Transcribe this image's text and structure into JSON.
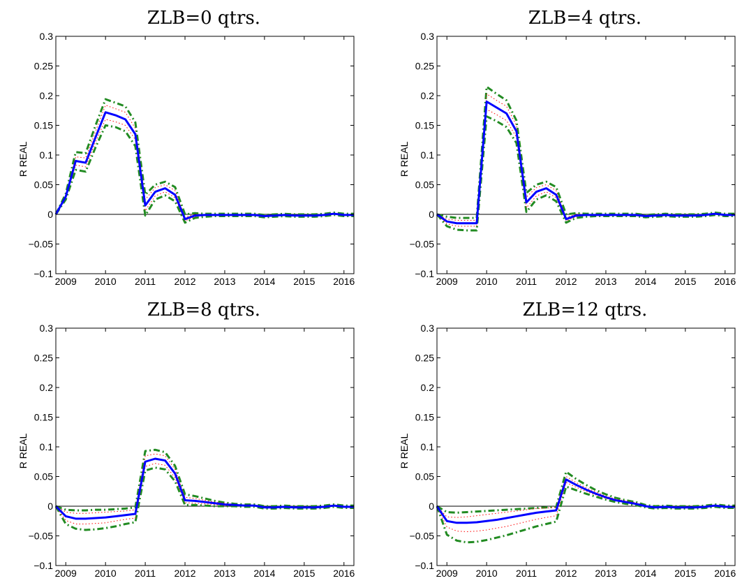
{
  "figure": {
    "colors": {
      "median": "#0000ff",
      "inner_band": "#ff0000",
      "outer_band": "#228b22",
      "zero_line": "#000000"
    }
  },
  "chart_data": [
    {
      "type": "line",
      "title": "ZLB=0 qtrs.",
      "ylabel": "R REAL",
      "xlim": [
        2008.75,
        2016.25
      ],
      "ylim": [
        -0.1,
        0.3
      ],
      "xticks": [
        2009,
        2010,
        2011,
        2012,
        2013,
        2014,
        2015,
        2016
      ],
      "xtick_labels": [
        "2009",
        "2010",
        "2011",
        "2012",
        "2013",
        "2014",
        "2015",
        "2016"
      ],
      "yticks": [
        -0.1,
        -0.05,
        0,
        0.05,
        0.1,
        0.15,
        0.2,
        0.25,
        0.3
      ],
      "ytick_labels": [
        "−0.1",
        "−0.05",
        "0",
        "0.05",
        "0.1",
        "0.15",
        "0.2",
        "0.25",
        "0.3"
      ],
      "x": [
        2008.75,
        2009,
        2009.25,
        2009.5,
        2009.75,
        2010,
        2010.25,
        2010.5,
        2010.75,
        2011,
        2011.25,
        2011.5,
        2011.75,
        2012,
        2012.25,
        2012.5,
        2012.75,
        2013,
        2013.25,
        2013.5,
        2013.75,
        2014,
        2014.25,
        2014.5,
        2014.75,
        2015,
        2015.25,
        2015.5,
        2015.75,
        2016,
        2016.25
      ],
      "series": [
        {
          "role": "median",
          "values": [
            0,
            0.03,
            0.09,
            0.087,
            0.13,
            0.172,
            0.167,
            0.16,
            0.135,
            0.015,
            0.038,
            0.044,
            0.033,
            -0.008,
            -0.002,
            -0.001,
            -0.001,
            -0.001,
            -0.001,
            -0.001,
            -0.001,
            -0.003,
            -0.002,
            -0.001,
            -0.002,
            -0.002,
            -0.002,
            -0.001,
            0.001,
            -0.001,
            -0.001
          ]
        },
        {
          "role": "inner-upper",
          "values": [
            0,
            0.032,
            0.097,
            0.095,
            0.14,
            0.184,
            0.178,
            0.172,
            0.145,
            0.025,
            0.045,
            0.05,
            0.04,
            -0.005,
            0,
            0,
            0,
            0,
            0,
            0,
            0,
            -0.002,
            -0.001,
            0,
            -0.001,
            -0.001,
            -0.001,
            0,
            0.002,
            0,
            0
          ]
        },
        {
          "role": "inner-lower",
          "values": [
            0,
            0.028,
            0.083,
            0.08,
            0.122,
            0.16,
            0.156,
            0.15,
            0.126,
            0.006,
            0.031,
            0.038,
            0.028,
            -0.011,
            -0.004,
            -0.002,
            -0.002,
            -0.002,
            -0.002,
            -0.002,
            -0.002,
            -0.004,
            -0.003,
            -0.002,
            -0.003,
            -0.003,
            -0.003,
            -0.002,
            0,
            -0.002,
            -0.002
          ]
        },
        {
          "role": "outer-upper",
          "values": [
            0,
            0.035,
            0.105,
            0.103,
            0.15,
            0.194,
            0.188,
            0.182,
            0.155,
            0.033,
            0.05,
            0.055,
            0.046,
            0,
            0.002,
            0.001,
            0.001,
            0.001,
            0.001,
            0.001,
            0.001,
            -0.001,
            0,
            0.001,
            0,
            0,
            0,
            0.001,
            0.003,
            0.001,
            0.001
          ]
        },
        {
          "role": "outer-lower",
          "values": [
            0,
            0.025,
            0.075,
            0.072,
            0.113,
            0.15,
            0.147,
            0.14,
            0.115,
            -0.002,
            0.025,
            0.032,
            0.022,
            -0.014,
            -0.006,
            -0.004,
            -0.003,
            -0.003,
            -0.003,
            -0.003,
            -0.003,
            -0.005,
            -0.004,
            -0.003,
            -0.004,
            -0.004,
            -0.004,
            -0.003,
            -0.001,
            -0.003,
            -0.003
          ]
        }
      ]
    },
    {
      "type": "line",
      "title": "ZLB=4 qtrs.",
      "ylabel": "R REAL",
      "xlim": [
        2008.75,
        2016.25
      ],
      "ylim": [
        -0.1,
        0.3
      ],
      "xticks": [
        2009,
        2010,
        2011,
        2012,
        2013,
        2014,
        2015,
        2016
      ],
      "xtick_labels": [
        "2009",
        "2010",
        "2011",
        "2012",
        "2013",
        "2014",
        "2015",
        "2016"
      ],
      "yticks": [
        -0.1,
        -0.05,
        0,
        0.05,
        0.1,
        0.15,
        0.2,
        0.25,
        0.3
      ],
      "ytick_labels": [
        "−0.1",
        "−0.05",
        "0",
        "0.05",
        "0.1",
        "0.15",
        "0.2",
        "0.25",
        "0.3"
      ],
      "x": [
        2008.75,
        2009,
        2009.25,
        2009.5,
        2009.75,
        2010,
        2010.25,
        2010.5,
        2010.75,
        2011,
        2011.25,
        2011.5,
        2011.75,
        2012,
        2012.25,
        2012.5,
        2012.75,
        2013,
        2013.25,
        2013.5,
        2013.75,
        2014,
        2014.25,
        2014.5,
        2014.75,
        2015,
        2015.25,
        2015.5,
        2015.75,
        2016,
        2016.25
      ],
      "series": [
        {
          "role": "median",
          "values": [
            0,
            -0.012,
            -0.015,
            -0.015,
            -0.015,
            0.19,
            0.18,
            0.17,
            0.14,
            0.02,
            0.038,
            0.044,
            0.033,
            -0.008,
            -0.002,
            -0.001,
            -0.001,
            -0.001,
            -0.001,
            -0.001,
            -0.001,
            -0.003,
            -0.002,
            -0.001,
            -0.002,
            -0.002,
            -0.002,
            -0.001,
            0.001,
            -0.001,
            -0.001
          ]
        },
        {
          "role": "inner-upper",
          "values": [
            0,
            -0.008,
            -0.01,
            -0.01,
            -0.01,
            0.203,
            0.192,
            0.182,
            0.15,
            0.029,
            0.045,
            0.05,
            0.04,
            -0.005,
            0,
            0,
            0,
            0,
            0,
            0,
            0,
            -0.002,
            -0.001,
            0,
            -0.001,
            -0.001,
            -0.001,
            0,
            0.002,
            0,
            0
          ]
        },
        {
          "role": "inner-lower",
          "values": [
            0,
            -0.016,
            -0.02,
            -0.02,
            -0.02,
            0.177,
            0.168,
            0.158,
            0.13,
            0.011,
            0.031,
            0.038,
            0.028,
            -0.011,
            -0.004,
            -0.002,
            -0.002,
            -0.002,
            -0.002,
            -0.002,
            -0.002,
            -0.004,
            -0.003,
            -0.002,
            -0.003,
            -0.003,
            -0.003,
            -0.002,
            0,
            -0.002,
            -0.002
          ]
        },
        {
          "role": "outer-upper",
          "values": [
            0,
            -0.004,
            -0.006,
            -0.006,
            -0.006,
            0.215,
            0.203,
            0.192,
            0.158,
            0.036,
            0.05,
            0.055,
            0.046,
            0,
            0.002,
            0.001,
            0.001,
            0.001,
            0.001,
            0.001,
            0.001,
            -0.001,
            0,
            0.001,
            0,
            0,
            0,
            0.001,
            0.003,
            0.001,
            0.001
          ]
        },
        {
          "role": "outer-lower",
          "values": [
            0,
            -0.02,
            -0.026,
            -0.027,
            -0.027,
            0.165,
            0.157,
            0.147,
            0.12,
            0.004,
            0.025,
            0.032,
            0.022,
            -0.014,
            -0.006,
            -0.004,
            -0.003,
            -0.003,
            -0.003,
            -0.003,
            -0.003,
            -0.005,
            -0.004,
            -0.003,
            -0.004,
            -0.004,
            -0.004,
            -0.003,
            -0.001,
            -0.003,
            -0.003
          ]
        }
      ]
    },
    {
      "type": "line",
      "title": "ZLB=8 qtrs.",
      "ylabel": "R REAL",
      "xlim": [
        2008.75,
        2016.25
      ],
      "ylim": [
        -0.1,
        0.3
      ],
      "xticks": [
        2009,
        2010,
        2011,
        2012,
        2013,
        2014,
        2015,
        2016
      ],
      "xtick_labels": [
        "2009",
        "2010",
        "2011",
        "2012",
        "2013",
        "2014",
        "2015",
        "2016"
      ],
      "yticks": [
        -0.1,
        -0.05,
        0,
        0.05,
        0.1,
        0.15,
        0.2,
        0.25,
        0.3
      ],
      "ytick_labels": [
        "−0.1",
        "−0.05",
        "0",
        "0.05",
        "0.1",
        "0.15",
        "0.2",
        "0.25",
        "0.3"
      ],
      "x": [
        2008.75,
        2009,
        2009.25,
        2009.5,
        2009.75,
        2010,
        2010.25,
        2010.5,
        2010.75,
        2011,
        2011.25,
        2011.5,
        2011.75,
        2012,
        2012.25,
        2012.5,
        2012.75,
        2013,
        2013.25,
        2013.5,
        2013.75,
        2014,
        2014.25,
        2014.5,
        2014.75,
        2015,
        2015.25,
        2015.5,
        2015.75,
        2016,
        2016.25
      ],
      "series": [
        {
          "role": "median",
          "values": [
            0,
            -0.017,
            -0.021,
            -0.021,
            -0.02,
            -0.019,
            -0.017,
            -0.015,
            -0.013,
            0.075,
            0.08,
            0.077,
            0.055,
            0.01,
            0.009,
            0.007,
            0.005,
            0.003,
            0.002,
            0.001,
            0.001,
            -0.002,
            -0.002,
            -0.001,
            -0.002,
            -0.002,
            -0.002,
            -0.001,
            0.001,
            -0.001,
            -0.001
          ]
        },
        {
          "role": "inner-upper",
          "values": [
            0,
            -0.01,
            -0.012,
            -0.012,
            -0.011,
            -0.01,
            -0.009,
            -0.008,
            -0.006,
            0.085,
            0.088,
            0.085,
            0.062,
            0.015,
            0.013,
            0.01,
            0.007,
            0.005,
            0.003,
            0.002,
            0.002,
            -0.001,
            -0.001,
            0,
            -0.001,
            -0.001,
            -0.001,
            0,
            0.002,
            0,
            0
          ]
        },
        {
          "role": "inner-lower",
          "values": [
            0,
            -0.024,
            -0.03,
            -0.03,
            -0.029,
            -0.028,
            -0.025,
            -0.022,
            -0.02,
            0.067,
            0.072,
            0.069,
            0.048,
            0.006,
            0.005,
            0.004,
            0.003,
            0.001,
            0.001,
            0,
            0,
            -0.003,
            -0.003,
            -0.002,
            -0.003,
            -0.003,
            -0.003,
            -0.002,
            0,
            -0.002,
            -0.002
          ]
        },
        {
          "role": "outer-upper",
          "values": [
            0,
            -0.006,
            -0.007,
            -0.007,
            -0.006,
            -0.006,
            -0.005,
            -0.004,
            -0.002,
            0.093,
            0.095,
            0.091,
            0.068,
            0.02,
            0.017,
            0.013,
            0.009,
            0.006,
            0.004,
            0.003,
            0.003,
            0,
            0,
            0.001,
            0,
            0,
            0,
            0.001,
            0.003,
            0.001,
            0.001
          ]
        },
        {
          "role": "outer-lower",
          "values": [
            0,
            -0.03,
            -0.038,
            -0.04,
            -0.039,
            -0.037,
            -0.034,
            -0.03,
            -0.027,
            0.06,
            0.065,
            0.062,
            0.042,
            0.002,
            0.002,
            0.001,
            0,
            0,
            0,
            -0.001,
            -0.001,
            -0.004,
            -0.004,
            -0.003,
            -0.004,
            -0.004,
            -0.004,
            -0.003,
            -0.001,
            -0.003,
            -0.003
          ]
        }
      ]
    },
    {
      "type": "line",
      "title": "ZLB=12 qtrs.",
      "ylabel": "R REAL",
      "xlim": [
        2008.75,
        2016.25
      ],
      "ylim": [
        -0.1,
        0.3
      ],
      "xticks": [
        2009,
        2010,
        2011,
        2012,
        2013,
        2014,
        2015,
        2016
      ],
      "xtick_labels": [
        "2009",
        "2010",
        "2011",
        "2012",
        "2013",
        "2014",
        "2015",
        "2016"
      ],
      "yticks": [
        -0.1,
        -0.05,
        0,
        0.05,
        0.1,
        0.15,
        0.2,
        0.25,
        0.3
      ],
      "ytick_labels": [
        "−0.1",
        "−0.05",
        "0",
        "0.05",
        "0.1",
        "0.15",
        "0.2",
        "0.25",
        "0.3"
      ],
      "x": [
        2008.75,
        2009,
        2009.25,
        2009.5,
        2009.75,
        2010,
        2010.25,
        2010.5,
        2010.75,
        2011,
        2011.25,
        2011.5,
        2011.75,
        2012,
        2012.25,
        2012.5,
        2012.75,
        2013,
        2013.25,
        2013.5,
        2013.75,
        2014,
        2014.25,
        2014.5,
        2014.75,
        2015,
        2015.25,
        2015.5,
        2015.75,
        2016,
        2016.25
      ],
      "series": [
        {
          "role": "median",
          "values": [
            0,
            -0.025,
            -0.028,
            -0.028,
            -0.027,
            -0.025,
            -0.023,
            -0.02,
            -0.017,
            -0.014,
            -0.011,
            -0.009,
            -0.007,
            0.045,
            0.036,
            0.028,
            0.021,
            0.015,
            0.01,
            0.007,
            0.004,
            0,
            -0.002,
            -0.001,
            -0.002,
            -0.002,
            -0.002,
            -0.001,
            0.001,
            -0.001,
            -0.001
          ]
        },
        {
          "role": "inner-upper",
          "values": [
            0,
            -0.018,
            -0.019,
            -0.018,
            -0.016,
            -0.014,
            -0.012,
            -0.01,
            -0.008,
            -0.006,
            -0.004,
            -0.003,
            -0.002,
            0.05,
            0.04,
            0.031,
            0.024,
            0.017,
            0.012,
            0.009,
            0.006,
            0.001,
            -0.001,
            0,
            -0.001,
            -0.001,
            -0.001,
            0,
            0.002,
            0,
            0
          ]
        },
        {
          "role": "inner-lower",
          "values": [
            0,
            -0.035,
            -0.042,
            -0.043,
            -0.042,
            -0.04,
            -0.037,
            -0.034,
            -0.03,
            -0.026,
            -0.022,
            -0.019,
            -0.016,
            0.04,
            0.032,
            0.025,
            0.019,
            0.013,
            0.009,
            0.006,
            0.003,
            -0.001,
            -0.003,
            -0.002,
            -0.003,
            -0.003,
            -0.003,
            -0.002,
            0,
            -0.002,
            -0.002
          ]
        },
        {
          "role": "outer-upper",
          "values": [
            0,
            -0.01,
            -0.011,
            -0.01,
            -0.009,
            -0.008,
            -0.007,
            -0.006,
            -0.005,
            -0.004,
            -0.003,
            -0.002,
            -0.001,
            0.058,
            0.046,
            0.036,
            0.027,
            0.02,
            0.014,
            0.01,
            0.007,
            0.002,
            0,
            0.001,
            0,
            0,
            0,
            0.001,
            0.003,
            0.001,
            0.001
          ]
        },
        {
          "role": "outer-lower",
          "values": [
            0,
            -0.048,
            -0.058,
            -0.061,
            -0.06,
            -0.057,
            -0.053,
            -0.049,
            -0.044,
            -0.039,
            -0.034,
            -0.03,
            -0.026,
            0.033,
            0.027,
            0.021,
            0.016,
            0.011,
            0.007,
            0.004,
            0.002,
            -0.002,
            -0.004,
            -0.003,
            -0.004,
            -0.004,
            -0.004,
            -0.003,
            -0.001,
            -0.003,
            -0.003
          ]
        }
      ]
    }
  ]
}
